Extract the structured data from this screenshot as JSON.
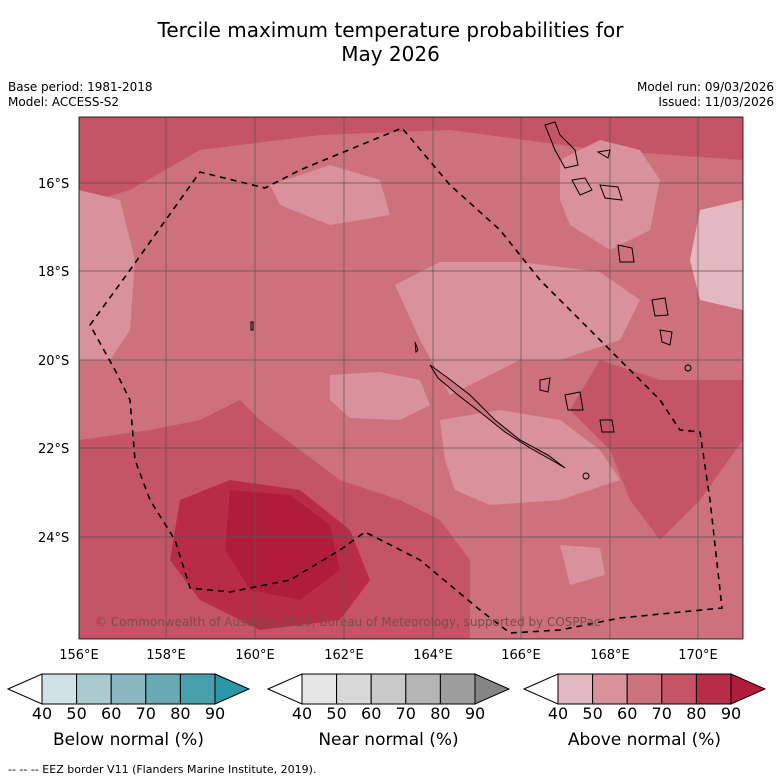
{
  "title_line1": "Tercile maximum temperature probabilities for",
  "title_line2": "May 2026",
  "base_period": "Base period: 1981-2018",
  "model": "Model: ACCESS-S2",
  "model_run": "Model run: 09/03/2026",
  "issued": "Issued: 11/03/2026",
  "copyright": "© Commonwealth of Australia 2026, Bureau of Meteorology, supported by COSPPac",
  "footnote": "--  --  -- EEZ border V11 (Flanders Marine Institute, 2019).",
  "lat_labels": [
    "16°S",
    "18°S",
    "20°S",
    "22°S",
    "24°S"
  ],
  "lon_labels": [
    "156°E",
    "158°E",
    "160°E",
    "162°E",
    "164°E",
    "166°E",
    "168°E",
    "170°E"
  ],
  "colorbars": [
    {
      "label": "Below normal (%)",
      "ticks": [
        "40",
        "50",
        "60",
        "70",
        "80",
        "90"
      ],
      "colors": [
        "#ffffff",
        "#cde3e7",
        "#a9cbd0",
        "#88b9c1",
        "#69a9b4",
        "#48a0ad",
        "#2a96a6"
      ]
    },
    {
      "label": "Near normal (%)",
      "ticks": [
        "40",
        "50",
        "60",
        "70",
        "80",
        "90"
      ],
      "colors": [
        "#ffffff",
        "#e6e6e6",
        "#d8d8d8",
        "#c9c9c9",
        "#b5b5b5",
        "#9e9e9e",
        "#858585"
      ]
    },
    {
      "label": "Above normal (%)",
      "ticks": [
        "40",
        "50",
        "60",
        "70",
        "80",
        "90"
      ],
      "colors": [
        "#ffffff",
        "#e4b8bf",
        "#d9929b",
        "#cd727c",
        "#c55566",
        "#b92c47",
        "#b01d3c"
      ]
    }
  ]
}
